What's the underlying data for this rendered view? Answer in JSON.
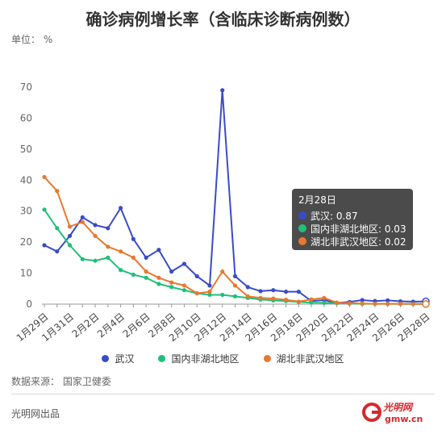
{
  "header": {
    "title": "确诊病例增长率（含临床诊断病例数）",
    "unit": "单位：  %"
  },
  "footer": {
    "source": "数据来源：  国家卫健委",
    "producer": "光明网出品",
    "logo_text": "光明网",
    "logo_url_text": "gmw.cn"
  },
  "tooltip": {
    "title": "2月28日",
    "rows": [
      {
        "label": "武汉: 0.87"
      },
      {
        "label": "国内非湖北地区: 0.03"
      },
      {
        "label": "湖北非武汉地区: 0.02"
      }
    ]
  },
  "colors": {
    "wuhan": "#3A4BC8",
    "non_hubei": "#20BF7A",
    "hubei_non_wuhan": "#E8782E",
    "axis": "#999999",
    "grid": "#e6e6e6"
  },
  "chart_data": {
    "type": "line",
    "title": "确诊病例增长率（含临床诊断病例数）",
    "ylim": [
      0,
      70
    ],
    "yticks": [
      0,
      10,
      20,
      30,
      40,
      50,
      60,
      70
    ],
    "x": [
      "1月29日",
      "1月30日",
      "1月31日",
      "2月1日",
      "2月2日",
      "2月3日",
      "2月4日",
      "2月5日",
      "2月6日",
      "2月7日",
      "2月8日",
      "2月9日",
      "2月10日",
      "2月11日",
      "2月12日",
      "2月13日",
      "2月14日",
      "2月15日",
      "2月16日",
      "2月17日",
      "2月18日",
      "2月19日",
      "2月20日",
      "2月21日",
      "2月22日",
      "2月23日",
      "2月24日",
      "2月25日",
      "2月26日",
      "2月27日",
      "2月28日"
    ],
    "xtick_labels": [
      "1月29日",
      "1月31日",
      "2月2日",
      "2月4日",
      "2月6日",
      "2月8日",
      "2月10日",
      "2月12日",
      "2月14日",
      "2月16日",
      "2月18日",
      "2月20日",
      "2月22日",
      "2月24日",
      "2月26日",
      "2月28日"
    ],
    "legend_position": "bottom",
    "grid": false,
    "series": [
      {
        "name": "武汉",
        "color": "#3A4BC8",
        "values": [
          19,
          17,
          22,
          28,
          25.5,
          24.5,
          31,
          21,
          15,
          17.5,
          10.5,
          13,
          9,
          6,
          69,
          9,
          5.5,
          4.2,
          4.5,
          4,
          4,
          1,
          1.3,
          0.4,
          0.7,
          1.3,
          1,
          1.2,
          0.9,
          0.8,
          0.87
        ]
      },
      {
        "name": "国内非湖北地区",
        "color": "#20BF7A",
        "values": [
          30.5,
          24.5,
          19,
          14.5,
          14,
          15,
          11,
          9.5,
          8.5,
          6.5,
          5.5,
          4.5,
          3.5,
          3,
          3,
          2.5,
          2,
          1.5,
          1.2,
          1,
          0.7,
          0.5,
          0.4,
          0.3,
          0.2,
          0.1,
          0.1,
          0.1,
          0.05,
          0.05,
          0.03
        ]
      },
      {
        "name": "湖北非武汉地区",
        "color": "#E8782E",
        "values": [
          41,
          36.5,
          25,
          26.5,
          22,
          18.5,
          17,
          15,
          10.5,
          8.5,
          7,
          6,
          3.5,
          4,
          10.5,
          6,
          2.5,
          2,
          1.8,
          1.4,
          0.8,
          1.5,
          2,
          0.5,
          0.3,
          0.2,
          0.1,
          0.1,
          0.1,
          0.05,
          0.02
        ]
      }
    ]
  }
}
